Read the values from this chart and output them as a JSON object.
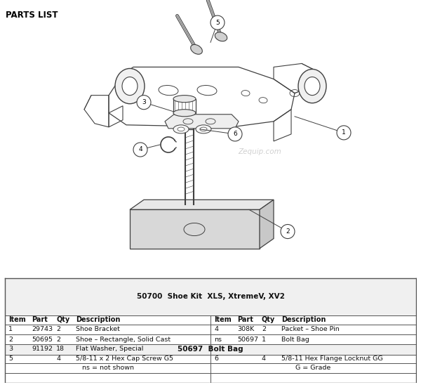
{
  "title": "PARTS LIST",
  "watermark": "Zequip.com",
  "bg_color": "#ffffff",
  "table_header1": "50700  Shoe Kit  XLS, XtremeV, XV2",
  "table_header2": "50697  Bolt Bag",
  "col_headers_left": [
    "Item",
    "Part",
    "Qty",
    "Description"
  ],
  "col_headers_right": [
    "Item",
    "Part",
    "Qty",
    "Description"
  ],
  "rows": [
    [
      "1",
      "29743",
      "2",
      "Shoe Bracket",
      "4",
      "308K",
      "2",
      "Packet – Shoe Pin"
    ],
    [
      "2",
      "50695",
      "2",
      "Shoe – Rectangle, Solid Cast",
      "ns",
      "50697",
      "1",
      "Bolt Bag"
    ],
    [
      "3",
      "91192",
      "18",
      "Flat Washer, Special",
      "",
      "",
      "",
      ""
    ]
  ],
  "bolt_bag_rows": [
    [
      "5",
      "",
      "4",
      "5/8-11 x 2 Hex Cap Screw G5",
      "6",
      "",
      "4",
      "5/8-11 Hex Flange Locknut GG"
    ]
  ],
  "footnotes": [
    "ns = not shown",
    "G = Grade"
  ],
  "line_color": "#404040",
  "light_gray": "#d0d0d0",
  "table_border": "#555555"
}
